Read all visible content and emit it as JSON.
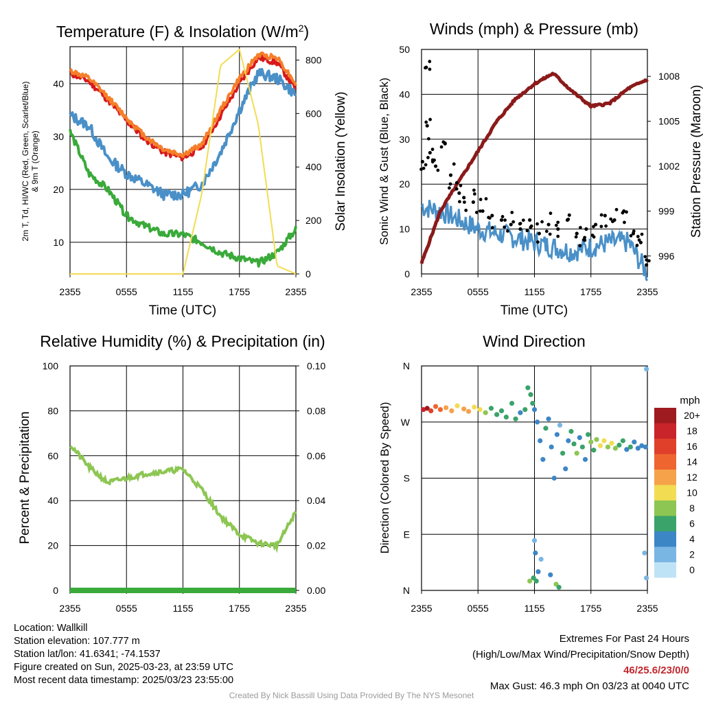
{
  "chart_data": [
    {
      "type": "line",
      "title": "Temperature (F) & Insolation (W/m²)",
      "title_main": "Temperature (F) & Insolation (W/m",
      "title_sup": "2",
      "title_end": ")",
      "xlabel": "Time (UTC)",
      "ylabel_line1": "2m T, Td, HI/WC (Red, Green, Scarlet/Blue)",
      "ylabel_line2": "& 9m T (Orange)",
      "y2label": "Solar Insolation (Yellow)",
      "x_ticks": [
        "2355",
        "0555",
        "1155",
        "1755",
        "2355"
      ],
      "ylim": [
        4,
        47
      ],
      "y_ticks": [
        10,
        20,
        30,
        40
      ],
      "y2lim": [
        0,
        850
      ],
      "y2_ticks": [
        0,
        200,
        400,
        600,
        800
      ],
      "x_hours": [
        0,
        2,
        4,
        6,
        8,
        10,
        12,
        14,
        16,
        18,
        20,
        22,
        24
      ],
      "series": [
        {
          "color": "#d7191c",
          "values": [
            42,
            40.5,
            37,
            33,
            29.5,
            27,
            26,
            28,
            34,
            40,
            45,
            44,
            39
          ],
          "axis": "left"
        },
        {
          "color": "#f57f2a",
          "values": [
            42.5,
            41,
            37.5,
            33.5,
            30,
            27.5,
            26.5,
            28.5,
            35,
            41,
            45.5,
            45,
            40
          ],
          "axis": "left"
        },
        {
          "color": "#4a90c8",
          "values": [
            34,
            32,
            26,
            23,
            21,
            19,
            19,
            21,
            27,
            35,
            42,
            41,
            38
          ],
          "axis": "left"
        },
        {
          "color": "#3aaa3a",
          "values": [
            31,
            23,
            20,
            15,
            13,
            11.5,
            11.5,
            10,
            8,
            7,
            6,
            8,
            12.5
          ],
          "axis": "left"
        },
        {
          "color": "#f2dc52",
          "values": [
            0,
            0,
            0,
            0,
            0,
            0,
            0,
            300,
            780,
            840,
            560,
            30,
            0
          ],
          "axis": "right"
        }
      ]
    },
    {
      "type": "line",
      "title": "Winds (mph) & Pressure (mb)",
      "xlabel": "Time (UTC)",
      "ylabel": "Sonic Wind & Gust (Blue, Black)",
      "y2label": "Station Pressure (Maroon)",
      "x_ticks": [
        "2355",
        "0555",
        "1155",
        "1755",
        "2355"
      ],
      "ylim": [
        0,
        50
      ],
      "y_ticks": [
        0,
        10,
        20,
        30,
        40,
        50
      ],
      "y2lim": [
        994.8,
        1009.8
      ],
      "y2_ticks": [
        996,
        999,
        1002,
        1005,
        1008
      ],
      "x_hours": [
        0,
        2,
        4,
        6,
        8,
        10,
        12,
        14,
        16,
        18,
        20,
        22,
        24
      ],
      "series": [
        {
          "color": "#4a90c8",
          "values": [
            15,
            14,
            12,
            10,
            9,
            8,
            7,
            6,
            5,
            6,
            7,
            7,
            0
          ],
          "axis": "left"
        },
        {
          "color": "#8b1a1a",
          "values": [
            995.5,
            999,
            1001,
            1003,
            1005,
            1006.5,
            1007.5,
            1008.2,
            1007,
            1006,
            1006.2,
            1007.2,
            1007.8
          ],
          "axis": "right"
        }
      ],
      "gust_points": [
        [
          0.1,
          25
        ],
        [
          0.5,
          46
        ],
        [
          0.6,
          33
        ],
        [
          0.9,
          27
        ],
        [
          1.5,
          24
        ],
        [
          2.5,
          29
        ],
        [
          3.1,
          22
        ],
        [
          4.0,
          18
        ],
        [
          4.5,
          17
        ],
        [
          5.5,
          16
        ],
        [
          6.5,
          14
        ],
        [
          7.5,
          13
        ],
        [
          8.5,
          12
        ],
        [
          9.5,
          11
        ],
        [
          10.5,
          10
        ],
        [
          11.5,
          12
        ],
        [
          12.5,
          9
        ],
        [
          13.5,
          11
        ],
        [
          14.5,
          10
        ],
        [
          15.5,
          12
        ],
        [
          16.5,
          9
        ],
        [
          17.5,
          10
        ],
        [
          18.5,
          11
        ],
        [
          19.5,
          13
        ],
        [
          20.5,
          12
        ],
        [
          21.5,
          14
        ],
        [
          22.5,
          9
        ],
        [
          23.3,
          7
        ],
        [
          23.9,
          2
        ]
      ]
    },
    {
      "type": "line",
      "title": "Relative Humidity (%) & Precipitation (in)",
      "ylabel": "Percent & Precipitation",
      "x_ticks": [
        "2355",
        "0555",
        "1155",
        "1755",
        "2355"
      ],
      "ylim": [
        0,
        100
      ],
      "y_ticks": [
        0,
        20,
        40,
        60,
        80,
        100
      ],
      "y2lim": [
        0,
        0.1
      ],
      "y2_ticks": [
        "0.00",
        "0.02",
        "0.04",
        "0.06",
        "0.08",
        "0.10"
      ],
      "x_hours": [
        0,
        2,
        4,
        6,
        8,
        10,
        12,
        14,
        16,
        18,
        20,
        22,
        24
      ],
      "series": [
        {
          "color": "#8dc653",
          "values": [
            65,
            55,
            48,
            50,
            52,
            53,
            54,
            45,
            33,
            25,
            21,
            20,
            35
          ],
          "axis": "left"
        },
        {
          "color": "#3aaa3a",
          "values": [
            0,
            0,
            0,
            0,
            0,
            0,
            0,
            0,
            0,
            0,
            0,
            0,
            0
          ],
          "axis": "right"
        }
      ]
    },
    {
      "type": "scatter",
      "title": "Wind Direction",
      "ylabel": "Direction (Colored By Speed)",
      "x_ticks": [
        "2355",
        "0555",
        "1155",
        "1755",
        "2355"
      ],
      "y_ticks": [
        "N",
        "E",
        "S",
        "W",
        "N"
      ],
      "ylim": [
        0,
        360
      ],
      "legend_title": "mph",
      "legend_labels": [
        "20+",
        "18",
        "16",
        "14",
        "12",
        "10",
        "8",
        "6",
        "4",
        "2",
        "0"
      ],
      "legend_colors": [
        "#9e1b1f",
        "#c8242a",
        "#e0402a",
        "#ef6530",
        "#f5a24a",
        "#f2dc52",
        "#8dc653",
        "#3aa36a",
        "#3d86c6",
        "#7ab6e3",
        "#bfe3f6"
      ],
      "points": [
        [
          0.2,
          290,
          18
        ],
        [
          0.6,
          292,
          20
        ],
        [
          1.0,
          288,
          16
        ],
        [
          1.5,
          295,
          14
        ],
        [
          2.0,
          290,
          13
        ],
        [
          2.6,
          293,
          12
        ],
        [
          3.2,
          288,
          11
        ],
        [
          3.8,
          296,
          10
        ],
        [
          4.5,
          291,
          12
        ],
        [
          5.0,
          287,
          11
        ],
        [
          5.6,
          294,
          9
        ],
        [
          6.2,
          290,
          10
        ],
        [
          6.8,
          285,
          7
        ],
        [
          7.4,
          292,
          6
        ],
        [
          8.0,
          282,
          6
        ],
        [
          8.5,
          288,
          5
        ],
        [
          9.0,
          278,
          6
        ],
        [
          9.6,
          300,
          6
        ],
        [
          10.0,
          275,
          5
        ],
        [
          10.5,
          285,
          4
        ],
        [
          11.0,
          290,
          6
        ],
        [
          11.3,
          325,
          5
        ],
        [
          11.6,
          314,
          6
        ],
        [
          11.8,
          300,
          5
        ],
        [
          12.0,
          290,
          4
        ],
        [
          12.3,
          270,
          3
        ],
        [
          12.6,
          240,
          4
        ],
        [
          12.9,
          210,
          3
        ],
        [
          13.2,
          260,
          5
        ],
        [
          13.5,
          275,
          3
        ],
        [
          13.8,
          230,
          4
        ],
        [
          14.1,
          180,
          3
        ],
        [
          14.4,
          250,
          4
        ],
        [
          14.7,
          265,
          2
        ],
        [
          15.0,
          220,
          5
        ],
        [
          15.3,
          195,
          4
        ],
        [
          15.6,
          240,
          3
        ],
        [
          15.9,
          255,
          6
        ],
        [
          16.2,
          235,
          5
        ],
        [
          16.5,
          220,
          7
        ],
        [
          16.8,
          245,
          4
        ],
        [
          17.1,
          230,
          6
        ],
        [
          17.4,
          210,
          4
        ],
        [
          17.7,
          250,
          5
        ],
        [
          18.0,
          238,
          8
        ],
        [
          18.3,
          225,
          6
        ],
        [
          18.6,
          242,
          7
        ],
        [
          19.0,
          232,
          9
        ],
        [
          19.4,
          240,
          10
        ],
        [
          19.8,
          230,
          8
        ],
        [
          20.2,
          236,
          9
        ],
        [
          20.6,
          228,
          7
        ],
        [
          21.0,
          233,
          6
        ],
        [
          21.4,
          240,
          5
        ],
        [
          21.8,
          226,
          4
        ],
        [
          22.2,
          230,
          5
        ],
        [
          22.6,
          238,
          4
        ],
        [
          23.0,
          228,
          3
        ],
        [
          23.4,
          232,
          4
        ],
        [
          23.8,
          230,
          3
        ],
        [
          12.0,
          80,
          2
        ],
        [
          12.1,
          60,
          3
        ],
        [
          12.4,
          30,
          4
        ],
        [
          12.7,
          50,
          2
        ],
        [
          11.9,
          20,
          5
        ],
        [
          12.2,
          15,
          6
        ],
        [
          13.7,
          25,
          3
        ],
        [
          14.3,
          10,
          7
        ],
        [
          14.6,
          5,
          6
        ],
        [
          11.5,
          15,
          8
        ],
        [
          23.7,
          60,
          2
        ],
        [
          23.9,
          20,
          1
        ],
        [
          23.9,
          355,
          1
        ]
      ]
    }
  ],
  "info": {
    "location": "Location: Wallkill",
    "elevation": "Station elevation: 107.777 m",
    "latlon": "Station lat/lon: 41.6341; -74.1537",
    "created": "Figure created on Sun, 2025-03-23, at 23:59 UTC",
    "recent": "Most recent data timestamp: 2025/03/23 23:55:00",
    "extremes_title": "Extremes For Past 24 Hours",
    "extremes_sub": "(High/Low/Max Wind/Precipitation/Snow Depth)",
    "extremes_values": "46/25.6/23/0/0",
    "max_gust": "Max Gust: 46.3 mph On 03/23 at 0040 UTC",
    "credit": "Created By Nick Bassill Using Data Provided By The NYS Mesonet"
  }
}
